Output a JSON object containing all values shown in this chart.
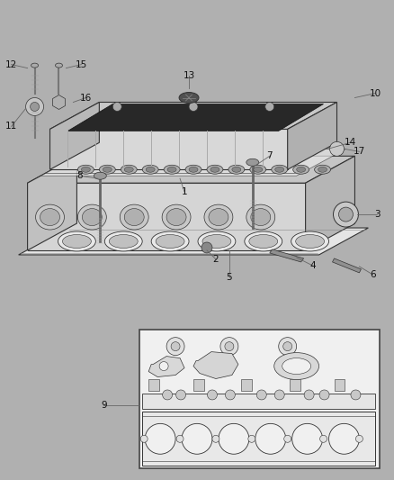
{
  "bg_color": "#b0b0b0",
  "fg_color": "#ffffff",
  "line_color": "#333333",
  "dark_color": "#222222",
  "fig_width": 4.38,
  "fig_height": 5.33,
  "dpi": 100
}
